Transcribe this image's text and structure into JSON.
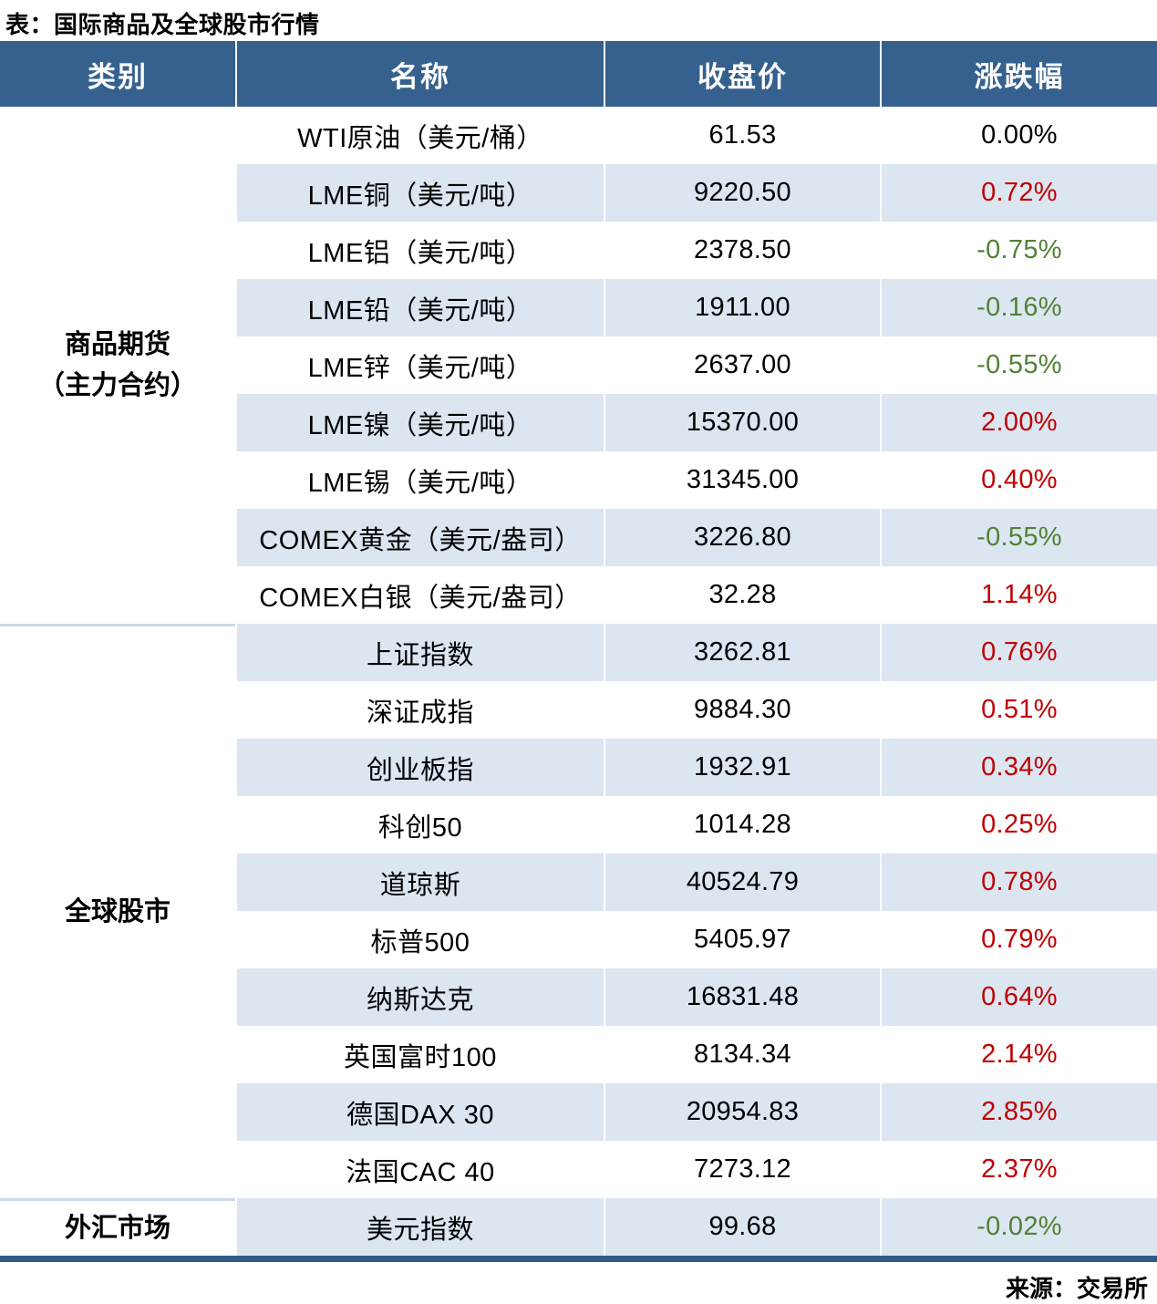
{
  "title": "表：国际商品及全球股市行情",
  "source": "来源：交易所",
  "columns": {
    "category": "类别",
    "name": "名称",
    "close": "收盘价",
    "change": "涨跌幅"
  },
  "colors": {
    "header_bg": "#36618f",
    "header_text": "#ffffff",
    "row_alt": "#dce6f1",
    "row_base": "#ffffff",
    "up": "#c00000",
    "down": "#538135",
    "flat": "#000000",
    "bottom_border": "#2f5b88",
    "group_sep": "#ccd9e8",
    "divider": "#ffffff"
  },
  "groups": [
    {
      "label": "商品期货\n（主力合约）",
      "row_count": 9
    },
    {
      "label": "全球股市",
      "row_count": 10
    },
    {
      "label": "外汇市场",
      "row_count": 1
    }
  ],
  "rows": [
    {
      "group": "商品期货（主力合约）",
      "name": "WTI原油（美元/桶）",
      "close": "61.53",
      "change": "0.00%",
      "direction": "flat"
    },
    {
      "group": "商品期货（主力合约）",
      "name": "LME铜（美元/吨）",
      "close": "9220.50",
      "change": "0.72%",
      "direction": "up"
    },
    {
      "group": "商品期货（主力合约）",
      "name": "LME铝（美元/吨）",
      "close": "2378.50",
      "change": "-0.75%",
      "direction": "down"
    },
    {
      "group": "商品期货（主力合约）",
      "name": "LME铅（美元/吨）",
      "close": "1911.00",
      "change": "-0.16%",
      "direction": "down"
    },
    {
      "group": "商品期货（主力合约）",
      "name": "LME锌（美元/吨）",
      "close": "2637.00",
      "change": "-0.55%",
      "direction": "down"
    },
    {
      "group": "商品期货（主力合约）",
      "name": "LME镍（美元/吨）",
      "close": "15370.00",
      "change": "2.00%",
      "direction": "up"
    },
    {
      "group": "商品期货（主力合约）",
      "name": "LME锡（美元/吨）",
      "close": "31345.00",
      "change": "0.40%",
      "direction": "up"
    },
    {
      "group": "商品期货（主力合约）",
      "name": "COMEX黄金（美元/盎司）",
      "close": "3226.80",
      "change": "-0.55%",
      "direction": "down"
    },
    {
      "group": "商品期货（主力合约）",
      "name": "COMEX白银（美元/盎司）",
      "close": "32.28",
      "change": "1.14%",
      "direction": "up"
    },
    {
      "group": "全球股市",
      "name": "上证指数",
      "close": "3262.81",
      "change": "0.76%",
      "direction": "up"
    },
    {
      "group": "全球股市",
      "name": "深证成指",
      "close": "9884.30",
      "change": "0.51%",
      "direction": "up"
    },
    {
      "group": "全球股市",
      "name": "创业板指",
      "close": "1932.91",
      "change": "0.34%",
      "direction": "up"
    },
    {
      "group": "全球股市",
      "name": "科创50",
      "close": "1014.28",
      "change": "0.25%",
      "direction": "up"
    },
    {
      "group": "全球股市",
      "name": "道琼斯",
      "close": "40524.79",
      "change": "0.78%",
      "direction": "up"
    },
    {
      "group": "全球股市",
      "name": "标普500",
      "close": "5405.97",
      "change": "0.79%",
      "direction": "up"
    },
    {
      "group": "全球股市",
      "name": "纳斯达克",
      "close": "16831.48",
      "change": "0.64%",
      "direction": "up"
    },
    {
      "group": "全球股市",
      "name": "英国富时100",
      "close": "8134.34",
      "change": "2.14%",
      "direction": "up"
    },
    {
      "group": "全球股市",
      "name": "德国DAX 30",
      "close": "20954.83",
      "change": "2.85%",
      "direction": "up"
    },
    {
      "group": "全球股市",
      "name": "法国CAC 40",
      "close": "7273.12",
      "change": "2.37%",
      "direction": "up"
    },
    {
      "group": "外汇市场",
      "name": "美元指数",
      "close": "99.68",
      "change": "-0.02%",
      "direction": "down"
    }
  ]
}
